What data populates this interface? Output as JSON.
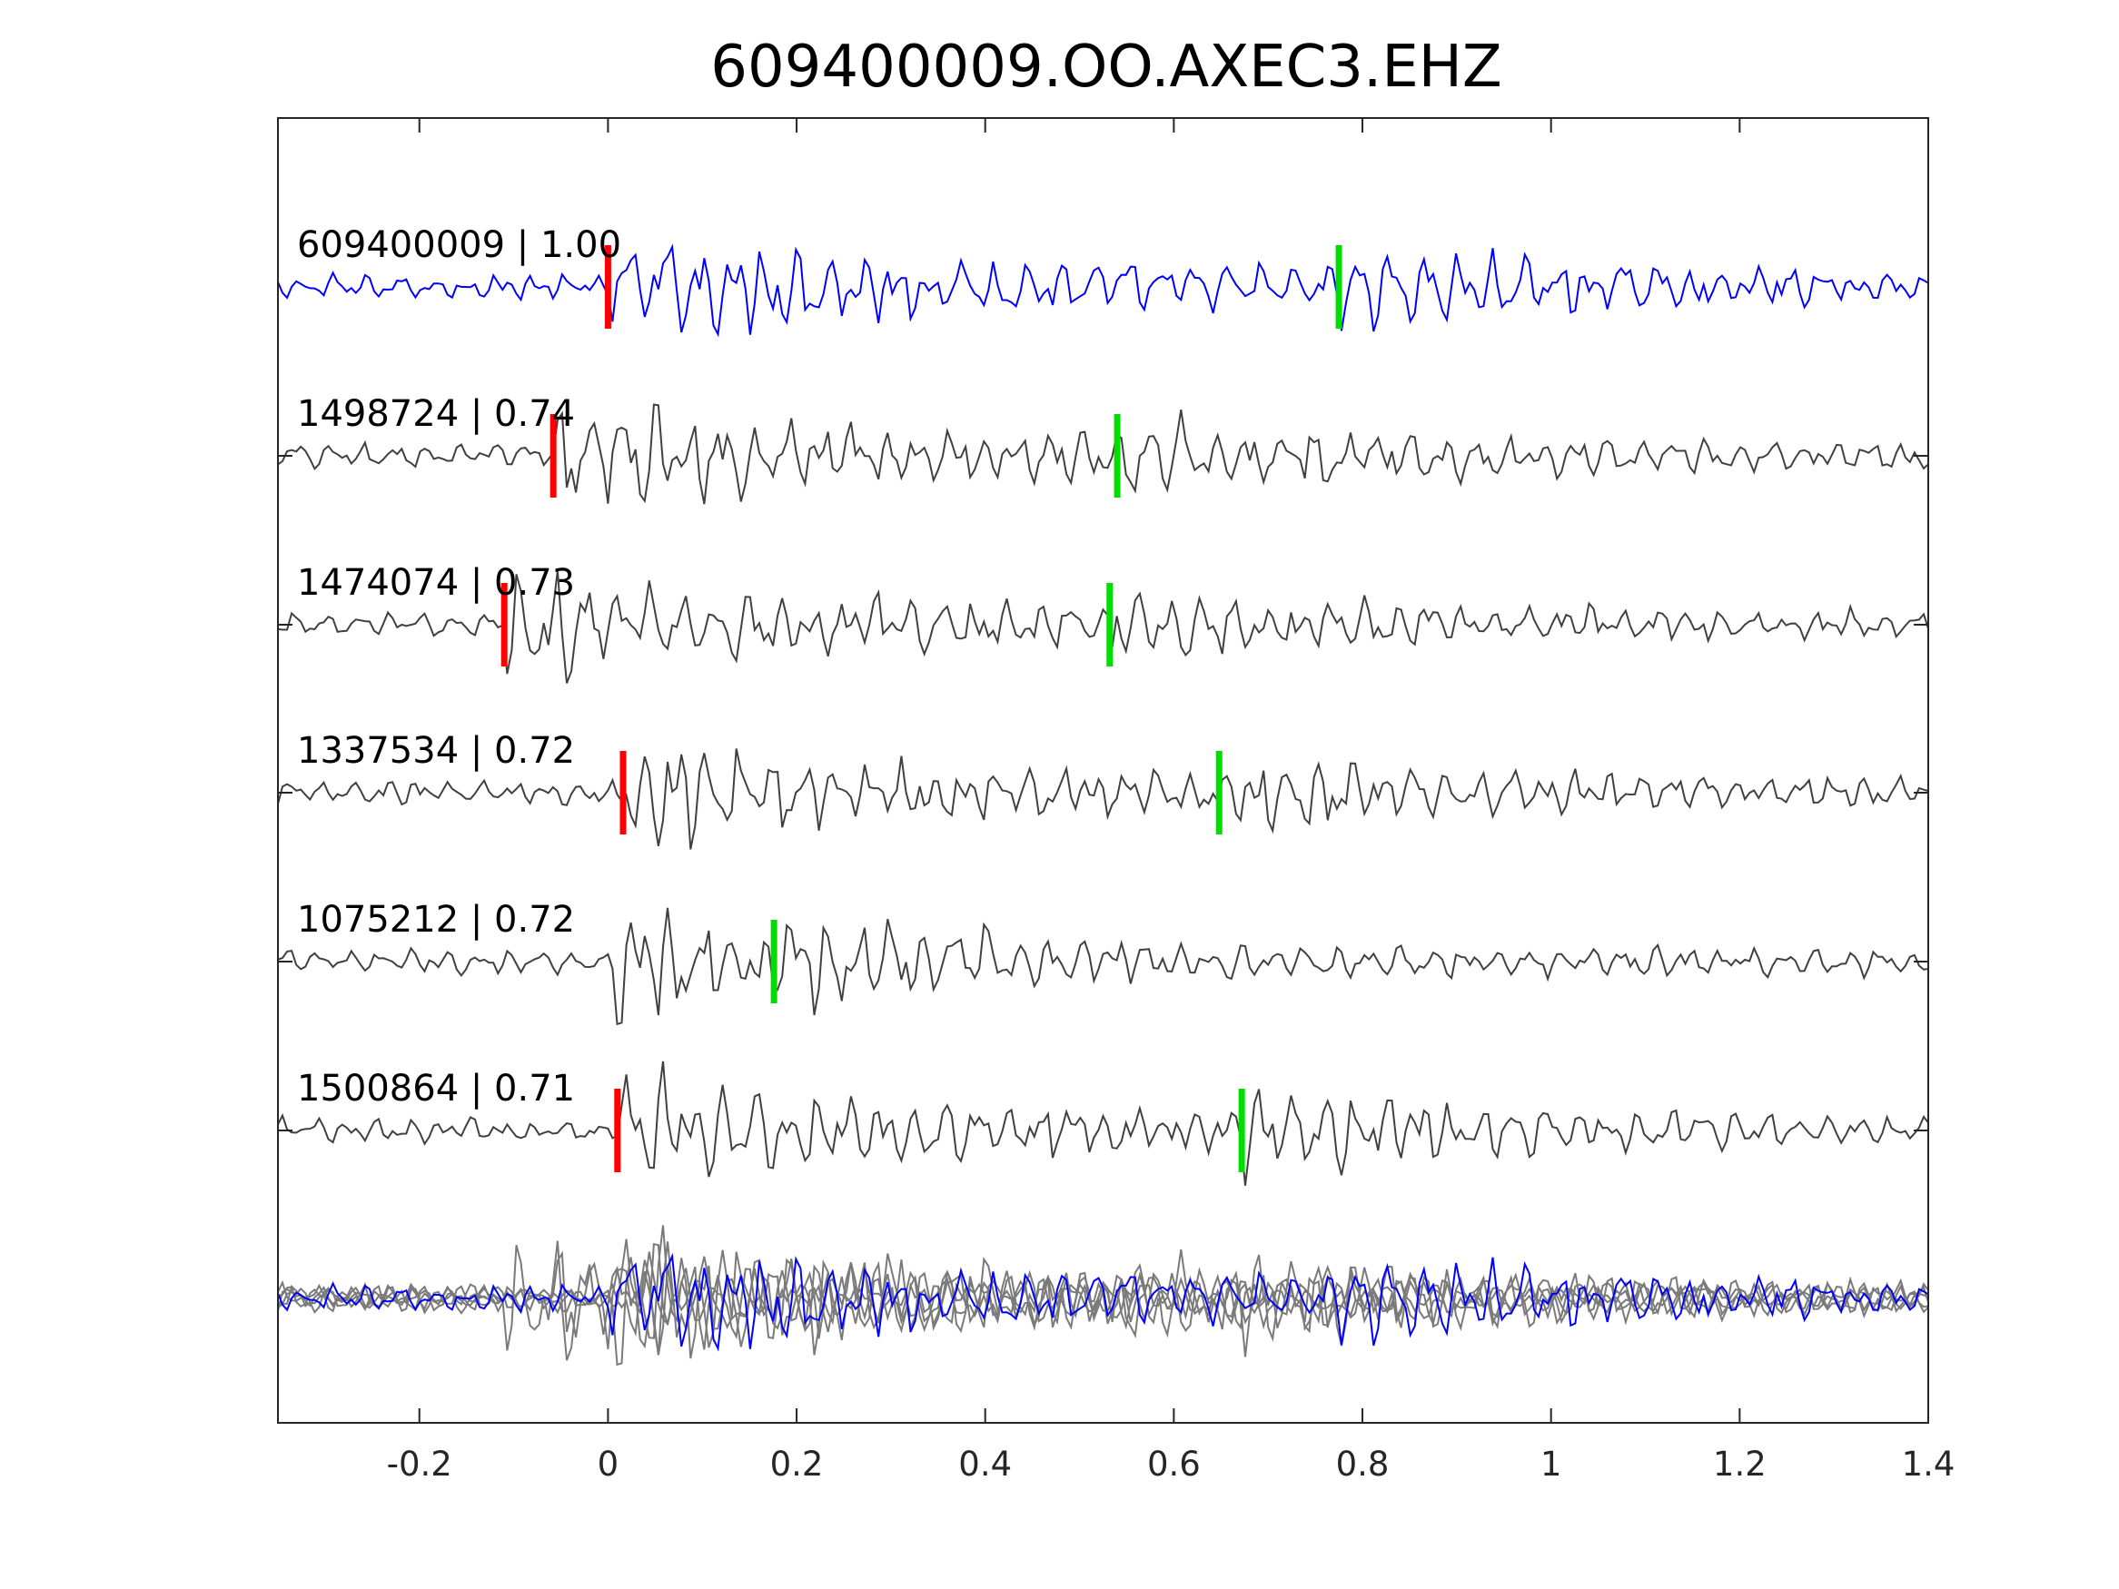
{
  "chart_data": {
    "type": "line",
    "title": "609400009.OO.AXEC3.EHZ",
    "xlabel": "",
    "ylabel": "",
    "xlim": [
      -0.35,
      1.4
    ],
    "x_ticks": [
      -0.2,
      0,
      0.2,
      0.4,
      0.6,
      0.8,
      1,
      1.2,
      1.4
    ],
    "x_tick_labels": [
      "-0.2",
      "0",
      "0.2",
      "0.4",
      "0.6",
      "0.8",
      "1",
      "1.2",
      "1.4"
    ],
    "grid": false,
    "legend": "none",
    "colors": {
      "template": "#0000ff",
      "trace": "#404040",
      "stack": "#7a7a7a",
      "p_pick": "#ff0000",
      "s_pick": "#00dd00",
      "axes": "#262626"
    },
    "traces": [
      {
        "label": "609400009 | 1.00",
        "id": "609400009",
        "cc": 1.0,
        "p_pick": 0.0,
        "s_pick": 0.775,
        "template": true
      },
      {
        "label": "1498724 | 0.74",
        "id": "1498724",
        "cc": 0.74,
        "p_pick": -0.058,
        "s_pick": 0.54
      },
      {
        "label": "1474074 | 0.73",
        "id": "1474074",
        "cc": 0.73,
        "p_pick": -0.11,
        "s_pick": 0.532
      },
      {
        "label": "1337534 | 0.72",
        "id": "1337534",
        "cc": 0.72,
        "p_pick": 0.016,
        "s_pick": 0.648
      },
      {
        "label": "1075212 | 0.72",
        "id": "1075212",
        "cc": 0.72,
        "p_pick": null,
        "s_pick": 0.176
      },
      {
        "label": "1500864 | 0.71",
        "id": "1500864",
        "cc": 0.71,
        "p_pick": 0.01,
        "s_pick": 0.672
      }
    ]
  }
}
